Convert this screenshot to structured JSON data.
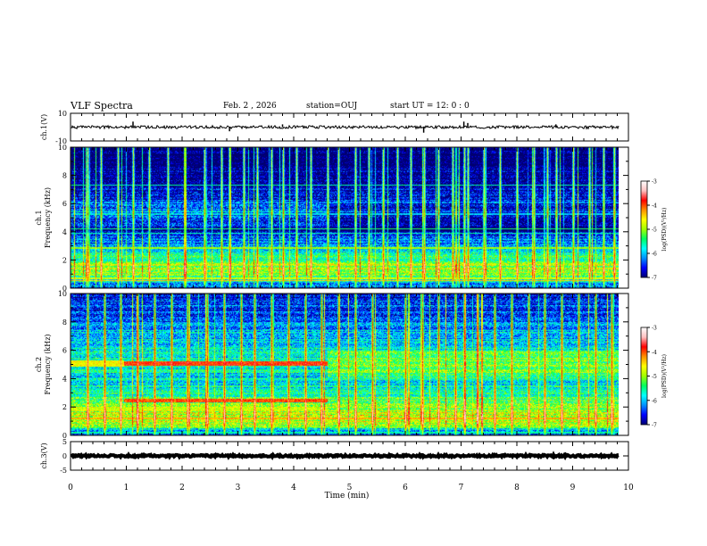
{
  "header": {
    "title": "VLF Spectra",
    "date": "Feb. 2  , 2026",
    "station": "station=OUJ",
    "start_time": "start  UT =   12: 0  : 0"
  },
  "colors": {
    "waveform": "#000000",
    "frame": "#000000",
    "colormap": [
      "#000070",
      "#0000ff",
      "#0090ff",
      "#00ffff",
      "#00ff60",
      "#a0ff00",
      "#ffff00",
      "#ff9000",
      "#ff0000",
      "#ffc0c0",
      "#ffffff"
    ]
  },
  "chart_data": [
    {
      "type": "line",
      "name": "ch1-waveform",
      "ylabel": "ch.1(V)",
      "ylim": [
        -10,
        10
      ],
      "yticks": [
        "10",
        "-10"
      ],
      "x_range": [
        0,
        9.83
      ],
      "baseline": 0,
      "spikes": [
        {
          "x": 1.12,
          "y": 4
        },
        {
          "x": 2.85,
          "y": -3
        },
        {
          "x": 3.8,
          "y": 2
        },
        {
          "x": 6.33,
          "y": -4
        },
        {
          "x": 7.05,
          "y": 4
        },
        {
          "x": 7.12,
          "y": 3
        },
        {
          "x": 8.7,
          "y": 2
        }
      ]
    },
    {
      "type": "heatmap",
      "name": "ch1-spectrogram",
      "ylabel": "Frequency (kHz)",
      "channel_label": "ch.1",
      "ylim": [
        0,
        10
      ],
      "yticks": [
        "0",
        "2",
        "4",
        "6",
        "8",
        "10"
      ],
      "x_range": [
        0,
        9.83
      ],
      "colorbar": {
        "label": "log(PSD)(V²/Hz)",
        "ticks": [
          "-3",
          "-4",
          "-5",
          "-6",
          "-7"
        ],
        "range": [
          -7,
          -3
        ]
      },
      "profile": [
        {
          "f": 0.0,
          "v": -6.8
        },
        {
          "f": 0.35,
          "v": -6.2
        },
        {
          "f": 0.8,
          "v": -5.3
        },
        {
          "f": 1.3,
          "v": -4.9
        },
        {
          "f": 1.8,
          "v": -5.2
        },
        {
          "f": 2.3,
          "v": -5.6
        },
        {
          "f": 3.0,
          "v": -6.0
        },
        {
          "f": 3.6,
          "v": -6.4
        },
        {
          "f": 4.0,
          "v": -7.0
        },
        {
          "f": 4.6,
          "v": -6.6
        },
        {
          "f": 5.3,
          "v": -6.1
        },
        {
          "f": 6.2,
          "v": -6.5
        },
        {
          "f": 7.4,
          "v": -6.9
        },
        {
          "f": 8.5,
          "v": -7.1
        },
        {
          "f": 10.0,
          "v": -7.2
        }
      ],
      "lines": [
        {
          "f": 0.15,
          "v": -5.8
        },
        {
          "f": 0.55,
          "v": -4.4
        },
        {
          "f": 0.7,
          "v": -4.8
        },
        {
          "f": 2.85,
          "v": -5.0
        },
        {
          "f": 3.9,
          "v": -5.6
        },
        {
          "f": 4.2,
          "v": -5.4
        },
        {
          "f": 5.25,
          "v": -6.0
        },
        {
          "f": 7.3,
          "v": -5.6
        }
      ],
      "bands": [],
      "sferic_times": [
        0.3,
        0.55,
        0.85,
        1.12,
        1.4,
        1.75,
        2.05,
        2.4,
        2.7,
        2.85,
        3.1,
        3.35,
        3.6,
        3.8,
        4.05,
        4.3,
        4.6,
        4.8,
        5.1,
        5.35,
        5.6,
        5.85,
        6.1,
        6.33,
        6.6,
        6.85,
        7.05,
        7.12,
        7.4,
        7.7,
        8.0,
        8.3,
        8.55,
        8.7,
        9.0,
        9.3,
        9.55,
        9.75
      ],
      "seed": 7
    },
    {
      "type": "heatmap",
      "name": "ch2-spectrogram",
      "ylabel": "Frequency (kHz)",
      "channel_label": "ch.2",
      "ylim": [
        0,
        10
      ],
      "yticks": [
        "0",
        "2",
        "4",
        "6",
        "8",
        "10"
      ],
      "x_range": [
        0,
        9.83
      ],
      "colorbar": {
        "label": "log(PSD)(V²/Hz)",
        "ticks": [
          "-3",
          "-4",
          "-5",
          "-6",
          "-7"
        ],
        "range": [
          -7,
          -3
        ]
      },
      "profile": [
        {
          "f": 0.0,
          "v": -6.6
        },
        {
          "f": 0.35,
          "v": -5.9
        },
        {
          "f": 0.8,
          "v": -5.0
        },
        {
          "f": 1.3,
          "v": -4.7
        },
        {
          "f": 1.8,
          "v": -5.0
        },
        {
          "f": 2.5,
          "v": -5.3
        },
        {
          "f": 3.2,
          "v": -5.6
        },
        {
          "f": 4.0,
          "v": -5.9
        },
        {
          "f": 5.0,
          "v": -5.6
        },
        {
          "f": 6.0,
          "v": -5.8
        },
        {
          "f": 7.0,
          "v": -5.9
        },
        {
          "f": 8.5,
          "v": -6.4
        },
        {
          "f": 10.0,
          "v": -6.6
        }
      ],
      "lines": [
        {
          "f": 0.2,
          "v": -5.6
        },
        {
          "f": 0.6,
          "v": -5.4
        },
        {
          "f": 1.2,
          "v": -4.3
        },
        {
          "f": 4.3,
          "v": -6.2
        }
      ],
      "bands": [
        {
          "f0": 4.9,
          "f1": 5.25,
          "t0": 0.95,
          "t1": 4.6,
          "v": -3.9
        },
        {
          "f0": 2.35,
          "f1": 2.6,
          "t0": 0.95,
          "t1": 4.6,
          "v": -4.0
        },
        {
          "f0": 4.85,
          "f1": 5.3,
          "t0": 0.0,
          "t1": 0.95,
          "v": -4.6
        },
        {
          "f0": 1.7,
          "f1": 2.0,
          "t0": 0.0,
          "t1": 4.6,
          "v": -4.9
        }
      ],
      "sferic_times": [
        0.3,
        0.6,
        0.9,
        1.2,
        1.5,
        1.8,
        2.1,
        2.45,
        2.75,
        3.05,
        3.3,
        3.6,
        3.9,
        4.2,
        4.5,
        4.8,
        5.1,
        5.4,
        5.7,
        6.0,
        6.3,
        6.6,
        6.9,
        7.05,
        7.3,
        7.6,
        7.9,
        8.2,
        8.5,
        8.8,
        9.1,
        9.4,
        9.7
      ],
      "seed": 13
    },
    {
      "type": "line",
      "name": "ch3-waveform",
      "ylabel": "ch.3(V)",
      "ylim": [
        -5,
        5
      ],
      "yticks": [
        "5",
        "0",
        "-5"
      ],
      "x_range": [
        0,
        9.83
      ],
      "baseline": 0,
      "spikes": []
    }
  ],
  "x_axis": {
    "xlabel": "Time (min)",
    "xlim": [
      0,
      10
    ],
    "ticks": [
      "0",
      "1",
      "2",
      "3",
      "4",
      "5",
      "6",
      "7",
      "8",
      "9",
      "10"
    ]
  }
}
